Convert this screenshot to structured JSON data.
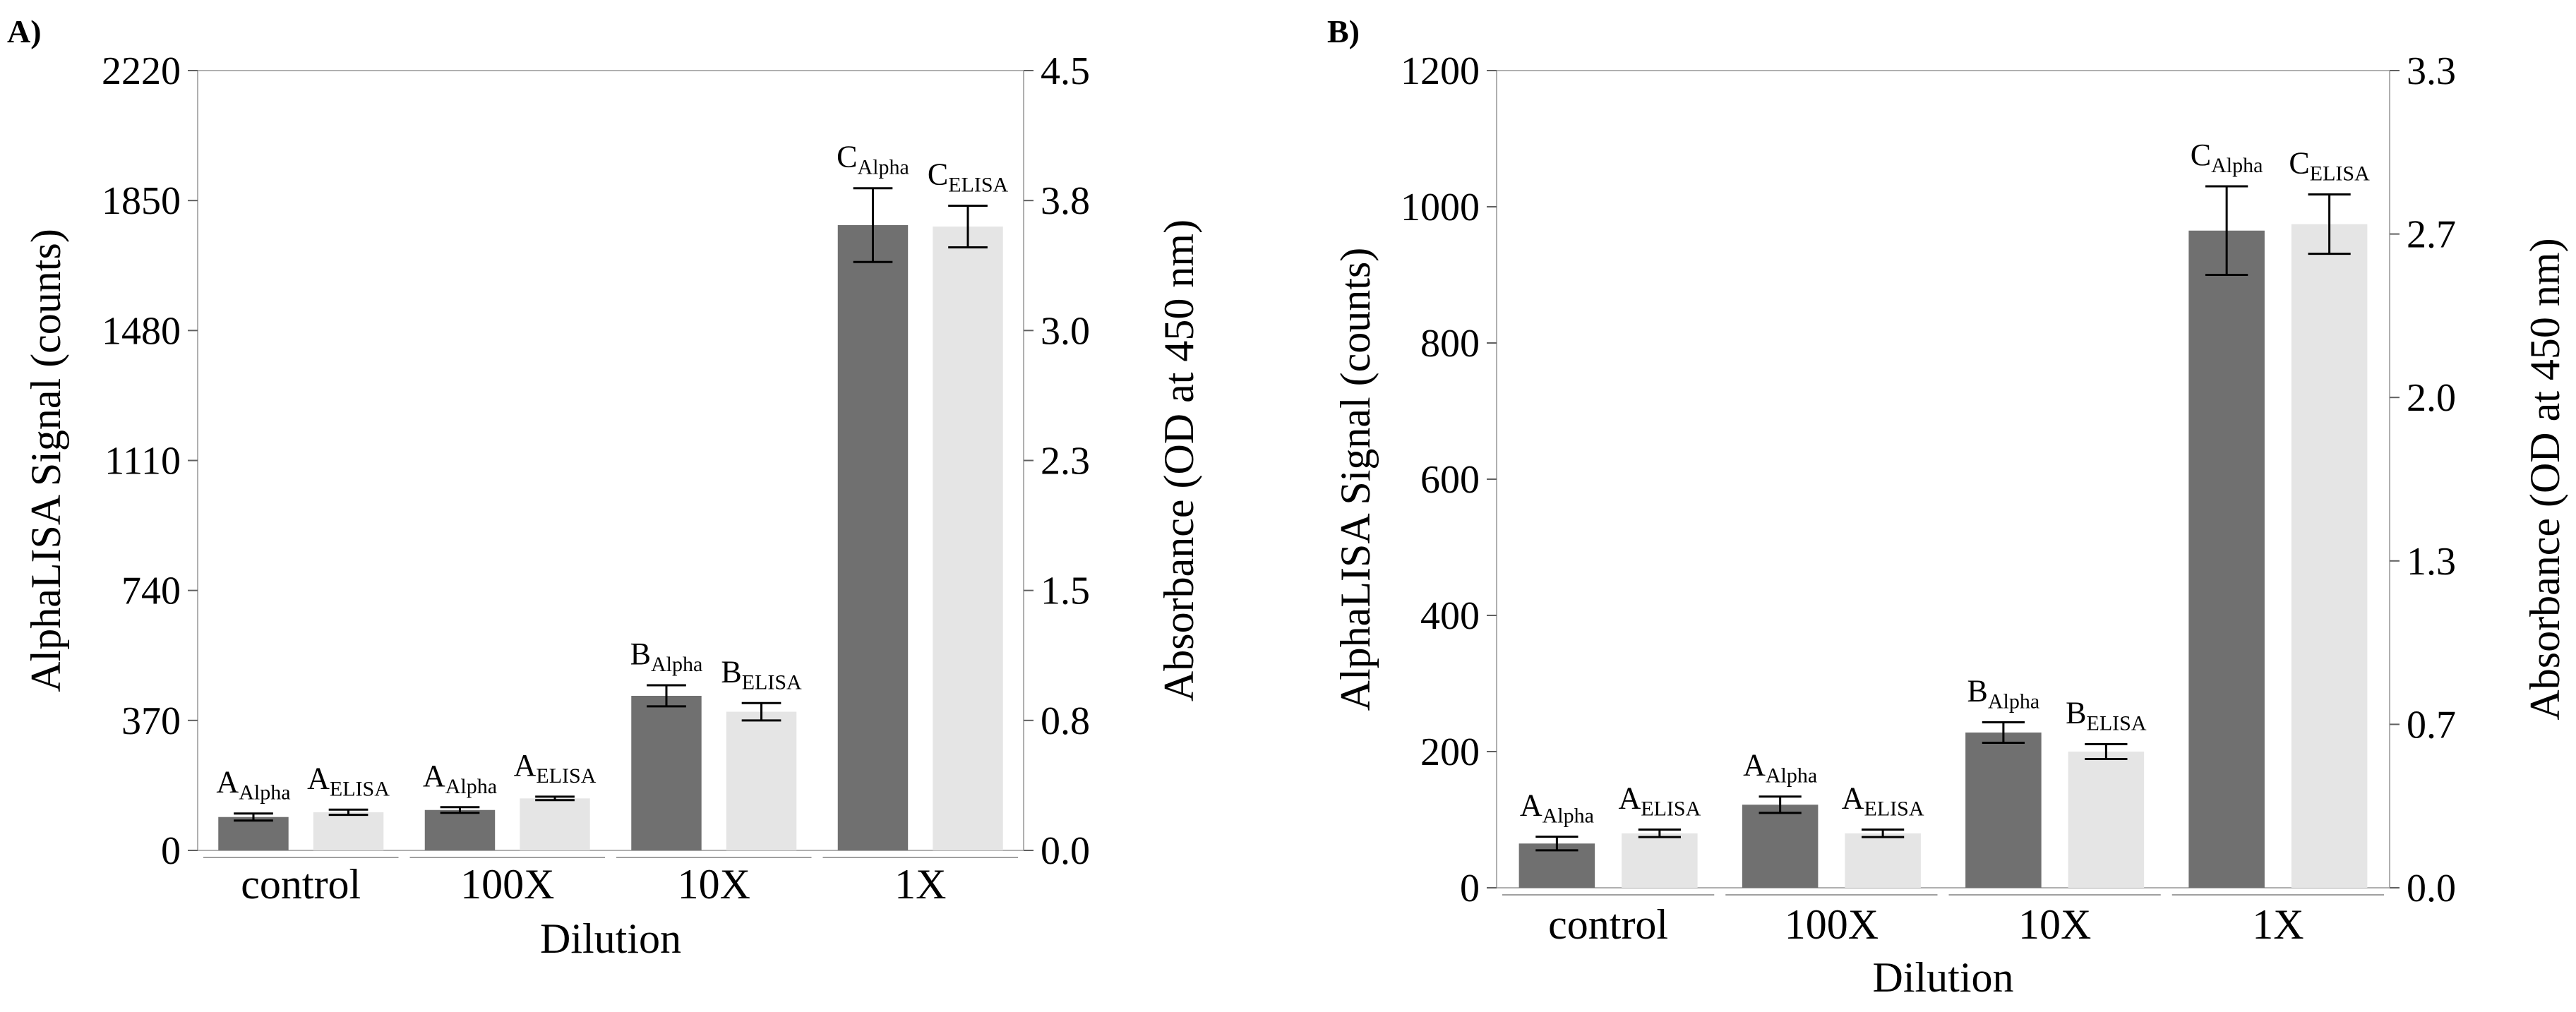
{
  "chart_data": [
    {
      "type": "bar",
      "panel_label": "A)",
      "xlabel": "Dilution",
      "ylabel": "AlphaLISA Signal (counts)",
      "y2label": "Absorbance (OD at 450 nm)",
      "categories": [
        "control",
        "100X",
        "10X",
        "1X"
      ],
      "ylim": [
        0,
        2220
      ],
      "yticks": [
        "0",
        "370",
        "740",
        "1110",
        "1480",
        "1850",
        "2220"
      ],
      "y2lim": [
        0,
        4.5
      ],
      "y2ticks": [
        "0.0",
        "0.8",
        "1.5",
        "2.3",
        "3.0",
        "3.8",
        "4.5"
      ],
      "y2tick_values": [
        0,
        0.75,
        1.5,
        2.25,
        3.0,
        3.75,
        4.5
      ],
      "series": [
        {
          "name": "AlphaLISA",
          "axis": "left",
          "color": "#707070",
          "values": [
            95,
            115,
            440,
            1780
          ],
          "errors": [
            10,
            8,
            30,
            105
          ],
          "labels": [
            [
              "A",
              "Alpha"
            ],
            [
              "A",
              "Alpha"
            ],
            [
              "B",
              "Alpha"
            ],
            [
              "C",
              "Alpha"
            ]
          ]
        },
        {
          "name": "ELISA",
          "axis": "right",
          "color": "#e5e5e5",
          "values": [
            0.22,
            0.3,
            0.8,
            3.6
          ],
          "errors": [
            0.015,
            0.01,
            0.05,
            0.12
          ],
          "labels": [
            [
              "A",
              "ELISA"
            ],
            [
              "A",
              "ELISA"
            ],
            [
              "B",
              "ELISA"
            ],
            [
              "C",
              "ELISA"
            ]
          ]
        }
      ]
    },
    {
      "type": "bar",
      "panel_label": "B)",
      "xlabel": "Dilution",
      "ylabel": "AlphaLISA Signal (counts)",
      "y2label": "Absorbance (OD at 450 nm)",
      "categories": [
        "control",
        "100X",
        "10X",
        "1X"
      ],
      "ylim": [
        0,
        1200
      ],
      "yticks": [
        "0",
        "200",
        "400",
        "600",
        "800",
        "1000",
        "1200"
      ],
      "y2lim": [
        0,
        3.3
      ],
      "y2ticks": [
        "0.0",
        "0.7",
        "1.3",
        "2.0",
        "2.7",
        "3.3"
      ],
      "y2tick_values": [
        0,
        0.66,
        1.32,
        1.98,
        2.64,
        3.3
      ],
      "series": [
        {
          "name": "AlphaLISA",
          "axis": "left",
          "color": "#707070",
          "values": [
            65,
            122,
            228,
            965
          ],
          "errors": [
            10,
            12,
            15,
            65
          ],
          "labels": [
            [
              "A",
              "Alpha"
            ],
            [
              "A",
              "Alpha"
            ],
            [
              "B",
              "Alpha"
            ],
            [
              "C",
              "Alpha"
            ]
          ]
        },
        {
          "name": "ELISA",
          "axis": "right",
          "color": "#e5e5e5",
          "values": [
            0.22,
            0.22,
            0.55,
            2.68
          ],
          "errors": [
            0.015,
            0.015,
            0.03,
            0.12
          ],
          "labels": [
            [
              "A",
              "ELISA"
            ],
            [
              "A",
              "ELISA"
            ],
            [
              "B",
              "ELISA"
            ],
            [
              "C",
              "ELISA"
            ]
          ]
        }
      ]
    }
  ]
}
